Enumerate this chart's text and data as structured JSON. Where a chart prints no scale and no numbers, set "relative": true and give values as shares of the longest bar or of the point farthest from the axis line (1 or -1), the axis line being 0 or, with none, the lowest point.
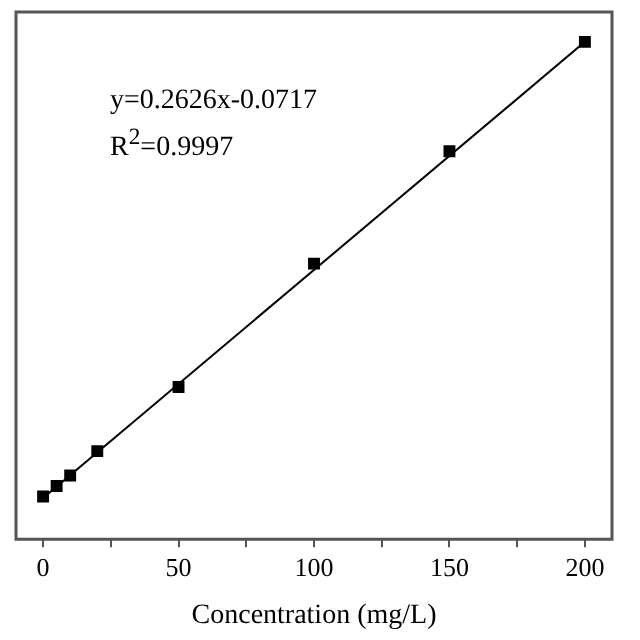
{
  "chart_data": {
    "type": "scatter",
    "relative": true,
    "xlabel": "Concentration (mg/L)",
    "xlim": [
      -10,
      210
    ],
    "xticks": [
      0,
      {
        "value": 25,
        "label": null
      },
      50,
      {
        "value": 75,
        "label": null
      },
      100,
      {
        "value": 125,
        "label": null
      },
      150,
      {
        "value": 175,
        "label": null
      },
      200
    ],
    "grid": false,
    "legend": false,
    "annotations": [
      "y=0.2626x-0.0717",
      "R$^{2}$=0.9997"
    ],
    "series": [
      {
        "marker": "square",
        "color": "#000000",
        "x": [
          0,
          5,
          10,
          20,
          50,
          100,
          150,
          200
        ],
        "values": [
          0.086,
          0.107,
          0.128,
          0.177,
          0.306,
          0.554,
          0.78,
          1.0
        ]
      },
      {
        "type": "line",
        "marker": "none",
        "color": "#000000",
        "x": [
          0,
          200
        ],
        "values": [
          0.083,
          1.0
        ]
      }
    ]
  }
}
